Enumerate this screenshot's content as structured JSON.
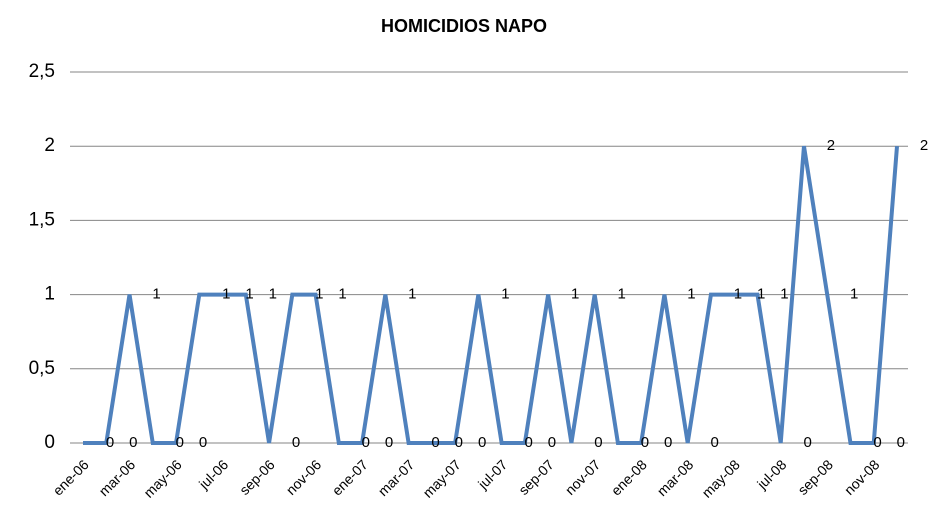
{
  "chart_data": {
    "type": "line",
    "title": "HOMICIDIOS NAPO",
    "categories": [
      "ene-06",
      null,
      "mar-06",
      null,
      "may-06",
      null,
      "jul-06",
      null,
      "sep-06",
      null,
      "nov-06",
      null,
      "ene-07",
      null,
      "mar-07",
      null,
      "may-07",
      null,
      "jul-07",
      null,
      "sep-07",
      null,
      "nov-07",
      null,
      "ene-08",
      null,
      "mar-08",
      null,
      "may-08",
      null,
      "jul-08",
      null,
      "sep-08",
      null,
      "nov-08",
      null
    ],
    "series": [
      {
        "name": "HOMICIDIOS NAPO",
        "color": "#4f81bd",
        "values": [
          0,
          0,
          1,
          0,
          0,
          1,
          1,
          1,
          0,
          1,
          1,
          0,
          0,
          1,
          0,
          0,
          0,
          1,
          0,
          0,
          1,
          0,
          1,
          0,
          0,
          1,
          0,
          1,
          1,
          1,
          0,
          2,
          1,
          0,
          0,
          2
        ]
      }
    ],
    "ylim": [
      0,
      2.5
    ],
    "yticks": [
      0,
      {
        "value": 0.5,
        "label": "0,5"
      },
      1,
      {
        "value": 1.5,
        "label": "1,5"
      },
      2,
      {
        "value": 2.5,
        "label": "2,5"
      }
    ],
    "grid": true
  }
}
